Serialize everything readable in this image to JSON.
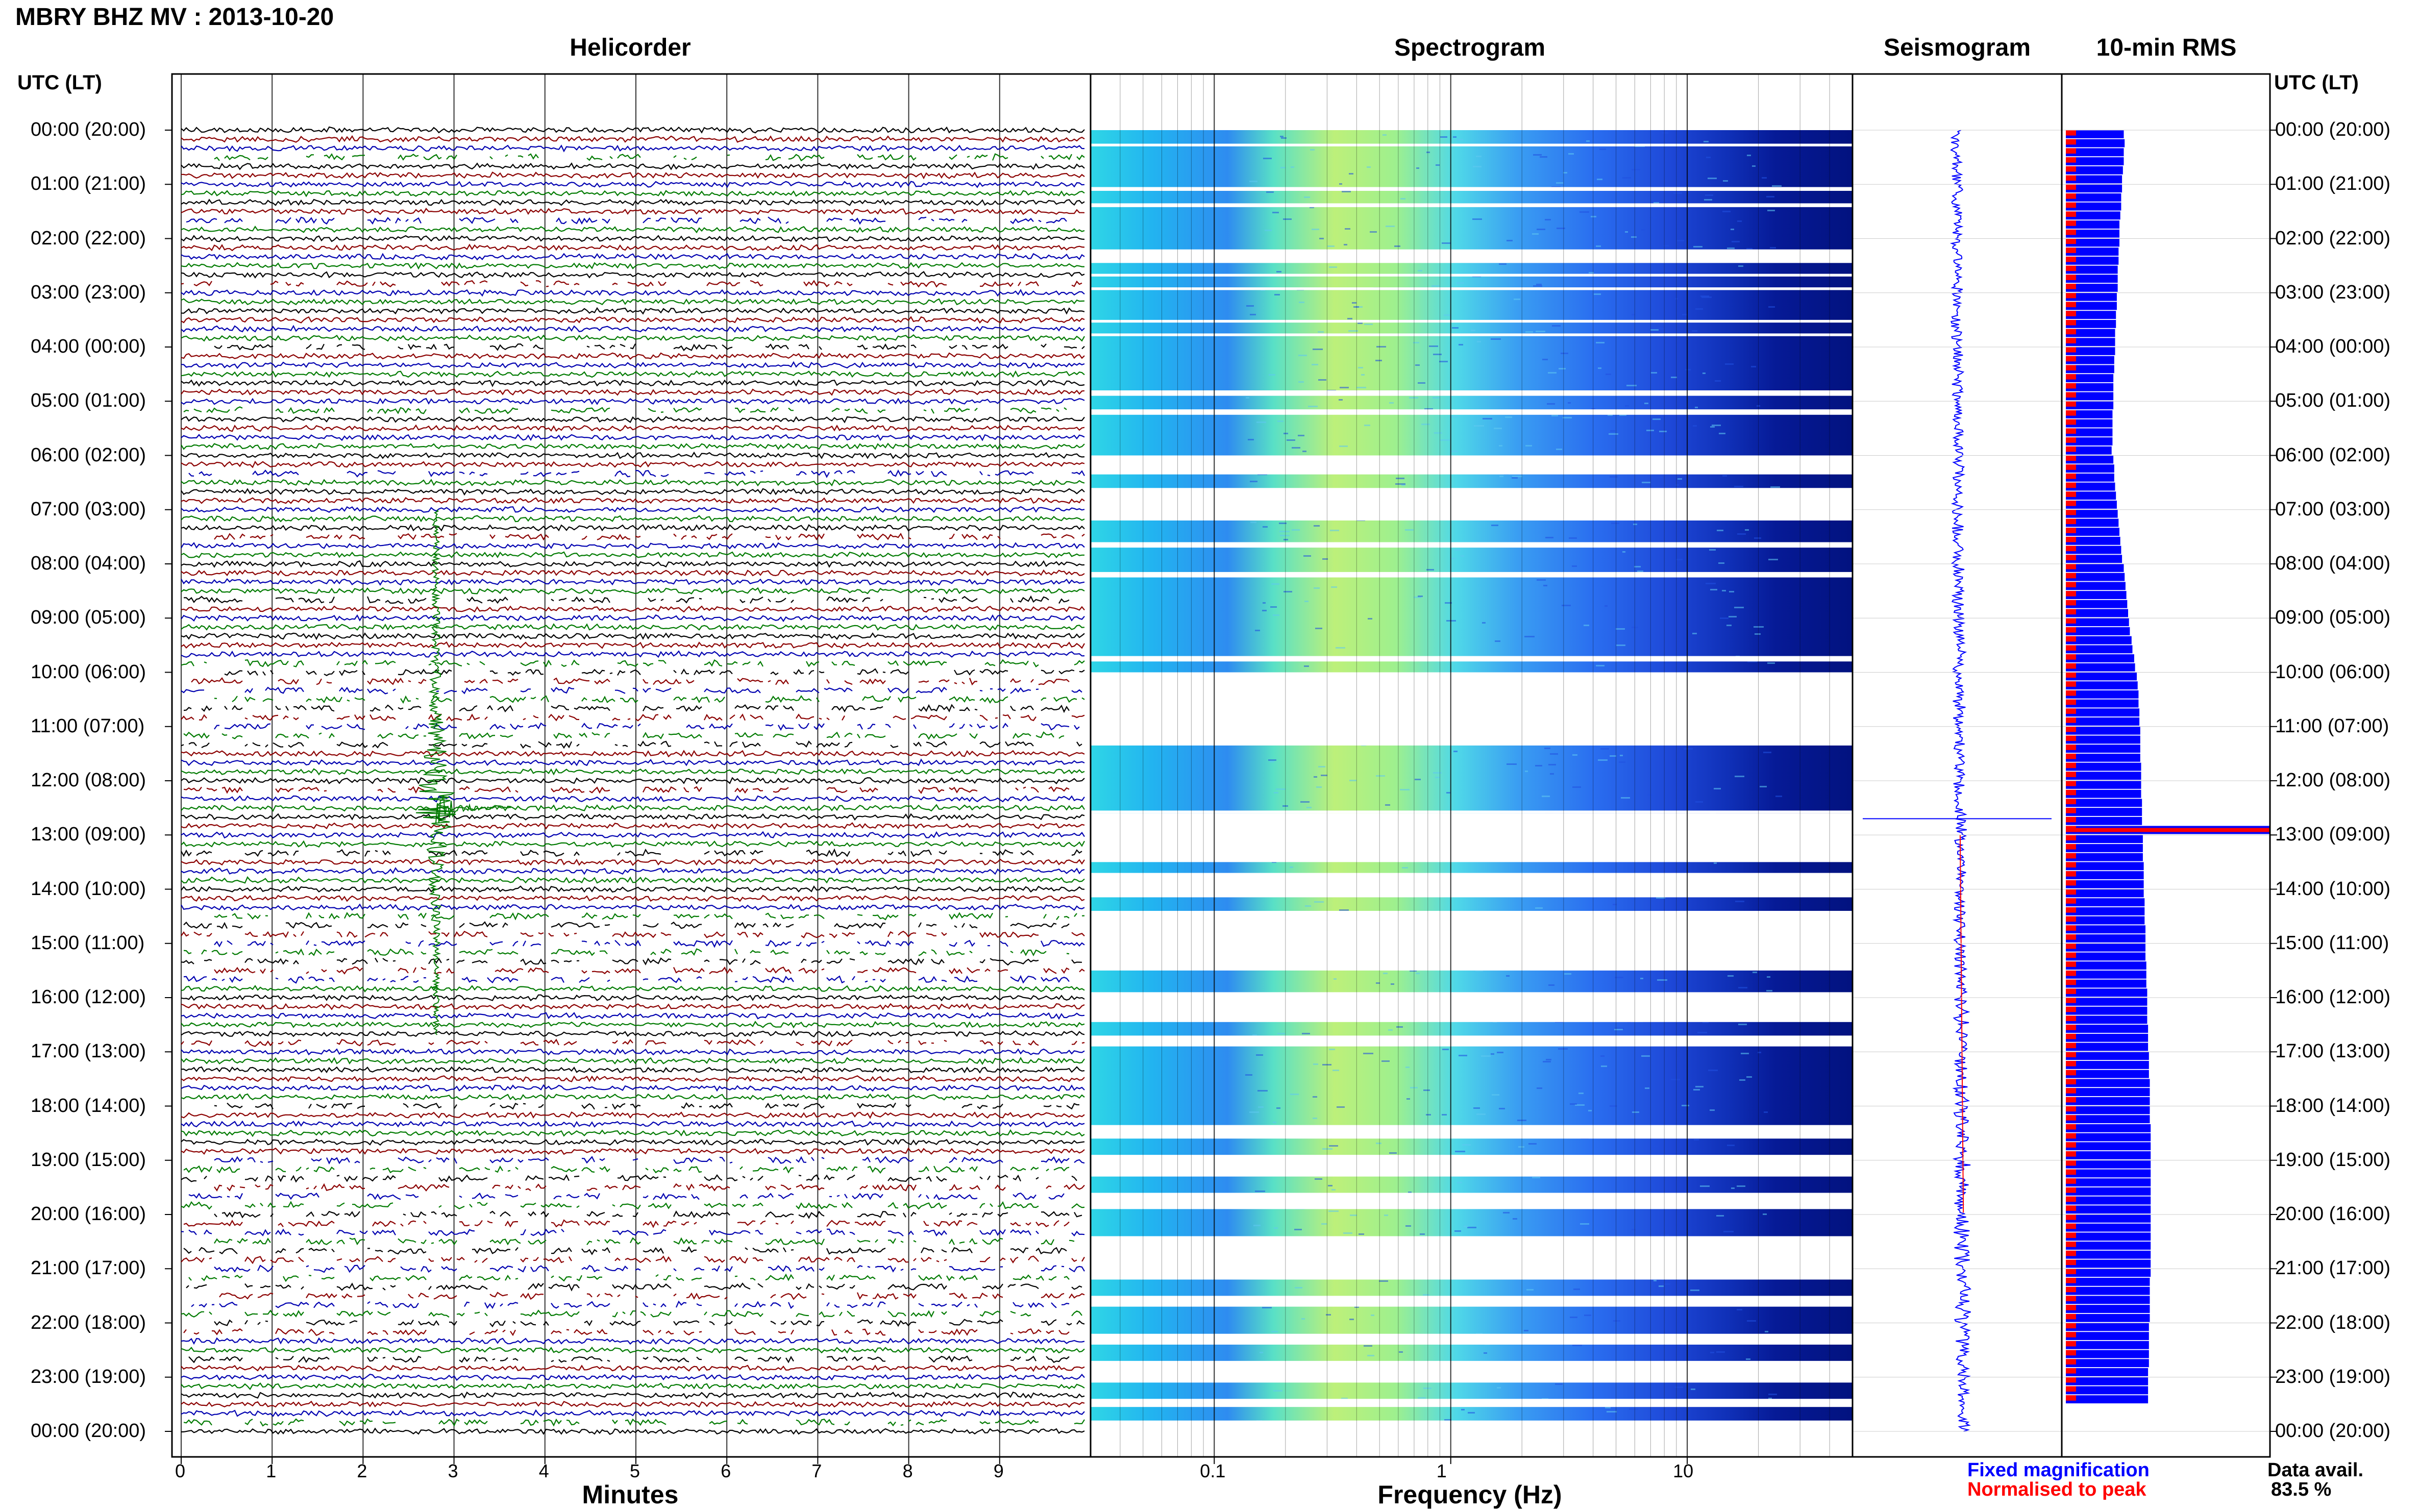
{
  "header": {
    "title": "MBRY BHZ MV : 2013-10-20",
    "left_axis_header": "UTC (LT)",
    "right_axis_header": "UTC (LT)"
  },
  "panels": {
    "helicorder": "Helicorder",
    "spectrogram": "Spectrogram",
    "seismogram": "Seismogram",
    "rms": "10-min RMS"
  },
  "time_labels": [
    "00:00 (20:00)",
    "01:00 (21:00)",
    "02:00 (22:00)",
    "03:00 (23:00)",
    "04:00 (00:00)",
    "05:00 (01:00)",
    "06:00 (02:00)",
    "07:00 (03:00)",
    "08:00 (04:00)",
    "09:00 (05:00)",
    "10:00 (06:00)",
    "11:00 (07:00)",
    "12:00 (08:00)",
    "13:00 (09:00)",
    "14:00 (10:00)",
    "15:00 (11:00)",
    "16:00 (12:00)",
    "17:00 (13:00)",
    "18:00 (14:00)",
    "19:00 (15:00)",
    "20:00 (16:00)",
    "21:00 (17:00)",
    "22:00 (18:00)",
    "23:00 (19:00)",
    "00:00 (20:00)"
  ],
  "legend": {
    "fixed": "Fixed magnification",
    "normalised": "Normalised to peak",
    "data_avail_label": "Data avail.",
    "data_avail_value": "83.5 %",
    "colors": {
      "fixed": "#0000ff",
      "normalised": "#ff0000"
    }
  },
  "chart_data": [
    {
      "type": "line",
      "panel": "helicorder",
      "xlabel": "Minutes",
      "x_ticks": [
        0,
        1,
        2,
        3,
        4,
        5,
        6,
        7,
        8,
        9
      ],
      "xlim": [
        0,
        10
      ],
      "rows_per_hour": 6,
      "trace_colors": [
        "#000000",
        "#8b0000",
        "#0000b0",
        "#007a00"
      ],
      "event": {
        "minute": 2.8,
        "hour_start": 7.0,
        "hour_end": 16.7,
        "peak_hour": 12.5,
        "color": "#007a00"
      },
      "gaps_hours": [
        [
          10.0,
          11.5
        ],
        [
          14.5,
          15.8
        ],
        [
          19.0,
          22.3
        ]
      ]
    },
    {
      "type": "heatmap",
      "panel": "spectrogram",
      "xlabel": "Frequency (Hz)",
      "x_scale": "log",
      "x_ticks": [
        0.1,
        1,
        10
      ],
      "x_tick_labels": [
        "0.1",
        "1",
        "10"
      ],
      "xlim": [
        0.03,
        50
      ],
      "colormap": "jet",
      "blank_hours": [
        [
          0.25,
          0.3
        ],
        [
          1.05,
          1.12
        ],
        [
          1.35,
          1.42
        ],
        [
          2.2,
          2.45
        ],
        [
          2.65,
          2.7
        ],
        [
          2.9,
          2.95
        ],
        [
          3.5,
          3.55
        ],
        [
          3.75,
          3.8
        ],
        [
          4.8,
          4.9
        ],
        [
          5.15,
          5.25
        ],
        [
          6.0,
          6.35
        ],
        [
          6.6,
          7.2
        ],
        [
          7.6,
          7.7
        ],
        [
          8.15,
          8.25
        ],
        [
          9.7,
          9.8
        ],
        [
          10.0,
          11.35
        ],
        [
          12.55,
          12.6
        ],
        [
          12.6,
          13.5
        ],
        [
          13.7,
          14.15
        ],
        [
          14.4,
          15.5
        ],
        [
          15.9,
          16.45
        ],
        [
          16.7,
          16.9
        ],
        [
          18.35,
          18.6
        ],
        [
          18.9,
          19.3
        ],
        [
          19.6,
          19.9
        ],
        [
          20.4,
          21.2
        ],
        [
          21.5,
          21.7
        ],
        [
          22.2,
          22.4
        ],
        [
          22.7,
          23.1
        ],
        [
          23.4,
          23.55
        ],
        [
          23.8,
          24.0
        ]
      ]
    },
    {
      "type": "line",
      "panel": "seismogram",
      "series": [
        {
          "name": "Fixed magnification",
          "color": "#0000ff"
        },
        {
          "name": "Normalised to peak",
          "color": "#ff0000"
        }
      ],
      "event_hour": 12.7
    },
    {
      "type": "bar",
      "panel": "rms",
      "orientation": "horizontal",
      "bin_minutes": 10,
      "values_relative": [
        0.55,
        0.56,
        0.55,
        0.55,
        0.54,
        0.53,
        0.53,
        0.52,
        0.52,
        0.51,
        0.5,
        0.5,
        0.5,
        0.49,
        0.49,
        0.48,
        0.48,
        0.48,
        0.47,
        0.47,
        0.46,
        0.46,
        0.45,
        0.45,
        0.45,
        0.44,
        0.44,
        0.43,
        0.43,
        0.43,
        0.43,
        0.42,
        0.42,
        0.42,
        0.42,
        0.41,
        0.43,
        0.44,
        0.44,
        0.45,
        0.46,
        0.47,
        0.48,
        0.49,
        0.5,
        0.51,
        0.52,
        0.53,
        0.55,
        0.56,
        0.57,
        0.58,
        0.59,
        0.6,
        0.61,
        0.62,
        0.64,
        0.65,
        0.67,
        0.68,
        0.7,
        0.71,
        0.72,
        0.72,
        0.73,
        0.73,
        0.74,
        0.74,
        0.74,
        0.74,
        0.75,
        0.75,
        0.75,
        0.75,
        0.76,
        0.76,
        0.76,
        1.0,
        0.77,
        0.77,
        0.77,
        0.78,
        0.78,
        0.78,
        0.78,
        0.79,
        0.79,
        0.79,
        0.8,
        0.8,
        0.8,
        0.8,
        0.81,
        0.81,
        0.81,
        0.82,
        0.82,
        0.82,
        0.82,
        0.83,
        0.83,
        0.83,
        0.84,
        0.84,
        0.84,
        0.85,
        0.85,
        0.85,
        0.85,
        0.85,
        0.86,
        0.86,
        0.86,
        0.86,
        0.86,
        0.86,
        0.86,
        0.86,
        0.86,
        0.86,
        0.86,
        0.86,
        0.86,
        0.86,
        0.86,
        0.86,
        0.86,
        0.85,
        0.85,
        0.85,
        0.85,
        0.85,
        0.84,
        0.84,
        0.84,
        0.84,
        0.84,
        0.83,
        0.83,
        0.83,
        0.83
      ],
      "normalised_color": "#ff0000",
      "fixed_color": "#0000ff"
    }
  ]
}
